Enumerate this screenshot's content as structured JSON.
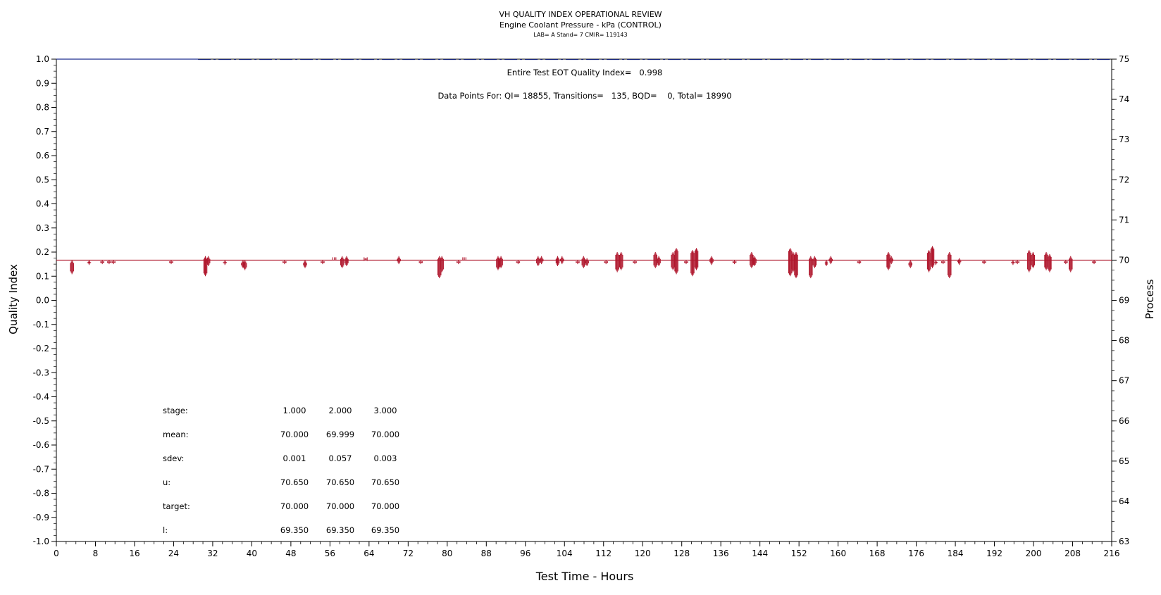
{
  "colors": {
    "process": "#b0182e",
    "quality_index": "#1f2f8f",
    "axis": "#000000"
  },
  "chart_data": {
    "type": "line",
    "title": "VH QUALITY INDEX OPERATIONAL REVIEW",
    "subtitle": "Engine Coolant Pressure - kPa (CONTROL)",
    "info_line": "LAB= A Stand= 7 CMIR= 119143",
    "xlabel": "Test Time - Hours",
    "ylabel_left": "Quality Index",
    "ylabel_right": "Process",
    "xlim": [
      0,
      216
    ],
    "ylim_left": [
      -1.0,
      1.0
    ],
    "ylim_right": [
      63,
      75
    ],
    "x_ticks": [
      "0",
      "8",
      "16",
      "24",
      "32",
      "40",
      "48",
      "56",
      "64",
      "72",
      "80",
      "88",
      "96",
      "104",
      "112",
      "120",
      "128",
      "136",
      "144",
      "152",
      "160",
      "168",
      "176",
      "184",
      "192",
      "200",
      "208",
      "216"
    ],
    "y_left_ticks": [
      "1.0",
      "0.9",
      "0.8",
      "0.7",
      "0.6",
      "0.5",
      "0.4",
      "0.3",
      "0.2",
      "0.1",
      "0.0",
      "-0.1",
      "-0.2",
      "-0.3",
      "-0.4",
      "-0.5",
      "-0.6",
      "-0.7",
      "-0.8",
      "-0.9",
      "-1.0"
    ],
    "y_right_ticks": [
      "75",
      "74",
      "73",
      "72",
      "71",
      "70",
      "69",
      "68",
      "67",
      "66",
      "65",
      "64",
      "63"
    ],
    "annotations": {
      "eot": "Entire Test EOT Quality Index=   0.998",
      "points": "Data Points For: QI= 18855, Transitions=   135, BQD=    0, Total= 18990"
    },
    "series": [
      {
        "name": "Quality Index",
        "axis": "left",
        "style": "dash-dot",
        "values_note": "",
        "value": 0.998
      },
      {
        "name": "Process",
        "axis": "right",
        "style": "line",
        "baseline": 70.0
      }
    ],
    "process_excursions": [
      [
        3.2,
        69.65,
        70.0
      ],
      [
        6.7,
        69.88,
        70.0
      ],
      [
        9.4,
        69.9,
        70.0
      ],
      [
        10.8,
        69.9,
        70.0
      ],
      [
        11.7,
        69.9,
        70.0
      ],
      [
        23.5,
        69.9,
        70.0
      ],
      [
        30.5,
        69.6,
        70.1
      ],
      [
        31.1,
        69.85,
        70.1
      ],
      [
        34.5,
        69.88,
        70.0
      ],
      [
        38.2,
        69.8,
        70.0
      ],
      [
        38.6,
        69.75,
        70.0
      ],
      [
        46.7,
        69.9,
        70.0
      ],
      [
        50.9,
        69.8,
        70.0
      ],
      [
        54.5,
        69.9,
        70.0
      ],
      [
        56.9,
        70.0,
        70.07
      ],
      [
        58.5,
        69.8,
        70.1
      ],
      [
        59.4,
        69.85,
        70.1
      ],
      [
        63.3,
        70.0,
        70.05
      ],
      [
        70.1,
        69.9,
        70.1
      ],
      [
        74.6,
        69.9,
        70.0
      ],
      [
        78.4,
        69.55,
        70.1
      ],
      [
        78.9,
        69.7,
        70.1
      ],
      [
        82.3,
        69.9,
        70.0
      ],
      [
        83.5,
        70.0,
        70.07
      ],
      [
        90.4,
        69.75,
        70.1
      ],
      [
        91.0,
        69.8,
        70.1
      ],
      [
        94.5,
        69.9,
        70.0
      ],
      [
        98.6,
        69.85,
        70.1
      ],
      [
        99.3,
        69.9,
        70.1
      ],
      [
        102.6,
        69.85,
        70.1
      ],
      [
        103.5,
        69.9,
        70.1
      ],
      [
        106.7,
        69.9,
        70.0
      ],
      [
        107.9,
        69.8,
        70.1
      ],
      [
        108.6,
        69.85,
        70.05
      ],
      [
        112.5,
        69.9,
        70.0
      ],
      [
        114.8,
        69.7,
        70.2
      ],
      [
        115.6,
        69.75,
        70.2
      ],
      [
        118.4,
        69.9,
        70.0
      ],
      [
        122.6,
        69.8,
        70.2
      ],
      [
        123.3,
        69.85,
        70.1
      ],
      [
        126.2,
        69.75,
        70.2
      ],
      [
        126.9,
        69.65,
        70.3
      ],
      [
        128.9,
        69.9,
        70.0
      ],
      [
        130.2,
        69.6,
        70.25
      ],
      [
        131.0,
        69.75,
        70.3
      ],
      [
        134.1,
        69.88,
        70.1
      ],
      [
        138.8,
        69.9,
        70.0
      ],
      [
        142.3,
        69.8,
        70.2
      ],
      [
        142.9,
        69.85,
        70.1
      ],
      [
        150.2,
        69.6,
        70.3
      ],
      [
        150.8,
        69.7,
        70.2
      ],
      [
        151.4,
        69.55,
        70.2
      ],
      [
        154.4,
        69.55,
        70.1
      ],
      [
        155.2,
        69.8,
        70.1
      ],
      [
        157.6,
        69.85,
        70.0
      ],
      [
        158.5,
        69.9,
        70.1
      ],
      [
        164.3,
        69.9,
        70.0
      ],
      [
        170.3,
        69.75,
        70.2
      ],
      [
        170.9,
        69.9,
        70.1
      ],
      [
        174.8,
        69.8,
        70.0
      ],
      [
        178.6,
        69.7,
        70.25
      ],
      [
        179.3,
        69.8,
        70.35
      ],
      [
        180.0,
        69.88,
        70.0
      ],
      [
        181.5,
        69.9,
        70.0
      ],
      [
        182.8,
        69.55,
        70.2
      ],
      [
        184.8,
        69.88,
        70.05
      ],
      [
        189.9,
        69.9,
        70.0
      ],
      [
        195.8,
        69.88,
        70.0
      ],
      [
        196.7,
        69.9,
        70.0
      ],
      [
        199.1,
        69.7,
        70.25
      ],
      [
        199.9,
        69.8,
        70.2
      ],
      [
        202.6,
        69.75,
        70.2
      ],
      [
        203.3,
        69.7,
        70.15
      ],
      [
        206.6,
        69.9,
        70.0
      ],
      [
        207.6,
        69.7,
        70.1
      ],
      [
        212.4,
        69.9,
        70.0
      ]
    ],
    "stats_table": {
      "rows": [
        {
          "label": "stage:",
          "values": [
            "1.000",
            "2.000",
            "3.000"
          ]
        },
        {
          "label": "mean:",
          "values": [
            "70.000",
            "69.999",
            "70.000"
          ]
        },
        {
          "label": "sdev:",
          "values": [
            "0.001",
            "0.057",
            "0.003"
          ]
        },
        {
          "label": "u:",
          "values": [
            "70.650",
            "70.650",
            "70.650"
          ]
        },
        {
          "label": "target:",
          "values": [
            "70.000",
            "70.000",
            "70.000"
          ]
        },
        {
          "label": "l:",
          "values": [
            "69.350",
            "69.350",
            "69.350"
          ]
        }
      ]
    }
  }
}
